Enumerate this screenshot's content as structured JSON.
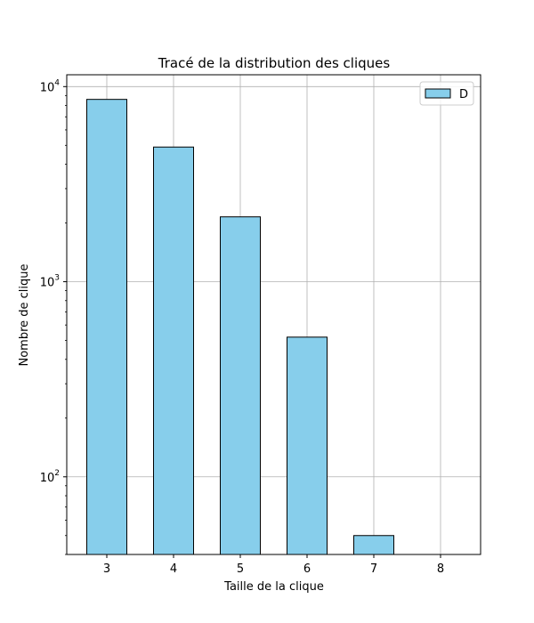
{
  "chart_data": {
    "type": "bar",
    "title": "Tracé de la distribution des cliques",
    "xlabel": "Taille de la clique",
    "ylabel": "Nombre de clique",
    "categories": [
      "3",
      "4",
      "5",
      "6",
      "7",
      "8"
    ],
    "series": [
      {
        "name": "D",
        "values": [
          8600,
          4900,
          2150,
          520,
          50,
          null
        ]
      }
    ],
    "y_scale": "log",
    "ylim": [
      40,
      11500
    ],
    "y_ticks": [
      {
        "value": 100,
        "base": "10",
        "exp": "2"
      },
      {
        "value": 1000,
        "base": "10",
        "exp": "3"
      },
      {
        "value": 10000,
        "base": "10",
        "exp": "4"
      }
    ],
    "grid": true,
    "legend_position": "top-right",
    "bar_color": "#87ceeb",
    "bar_edge_color": "#000000"
  }
}
